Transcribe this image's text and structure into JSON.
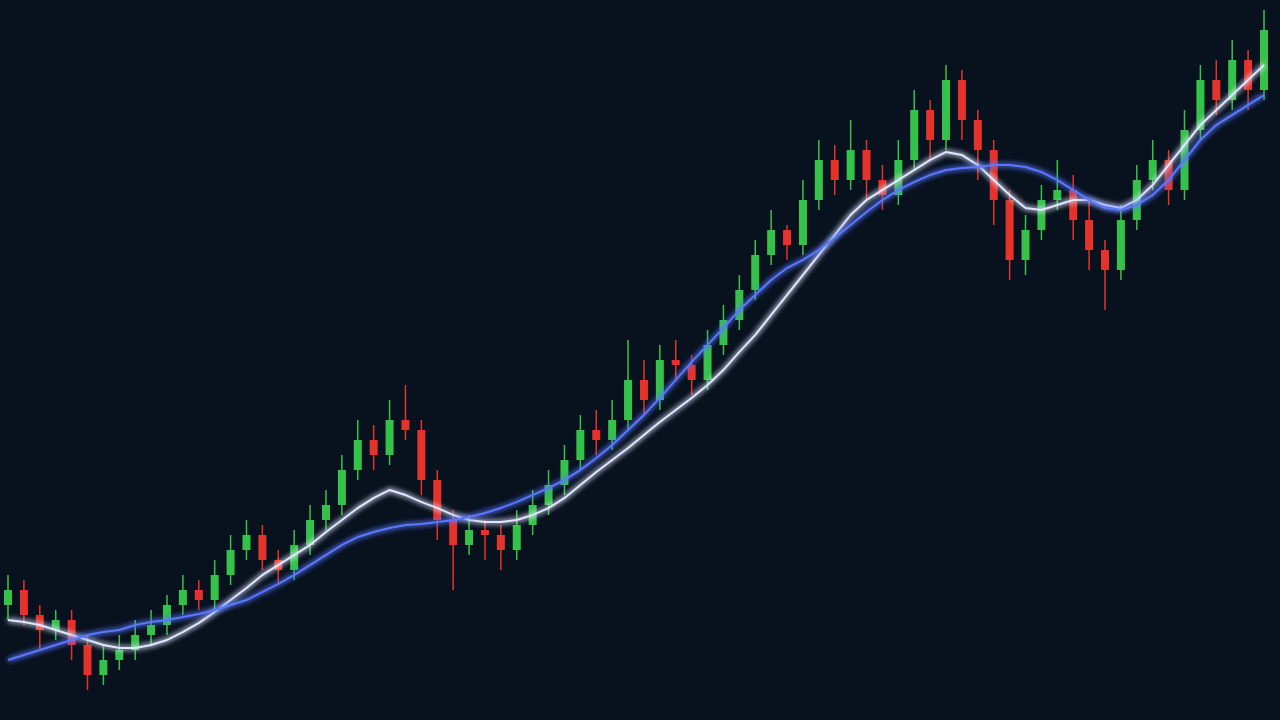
{
  "chart_data": {
    "type": "candlestick",
    "background": "#08111e",
    "up_color": "#35c24a",
    "down_color": "#e5322b",
    "ylim": [
      0,
      720
    ],
    "open": [
      115,
      130,
      105,
      90,
      100,
      75,
      45,
      60,
      70,
      85,
      95,
      115,
      130,
      120,
      145,
      170,
      185,
      160,
      150,
      175,
      200,
      215,
      250,
      280,
      265,
      300,
      290,
      240,
      200,
      175,
      190,
      185,
      170,
      195,
      215,
      235,
      260,
      290,
      280,
      300,
      340,
      320,
      360,
      355,
      340,
      375,
      400,
      430,
      465,
      490,
      475,
      520,
      560,
      540,
      570,
      540,
      525,
      560,
      610,
      580,
      640,
      600,
      570,
      520,
      460,
      490,
      520,
      530,
      500,
      470,
      450,
      500,
      540,
      560,
      530,
      590,
      640,
      620,
      660,
      630
    ],
    "high": [
      145,
      140,
      115,
      110,
      110,
      85,
      75,
      85,
      100,
      110,
      125,
      145,
      140,
      160,
      185,
      200,
      195,
      170,
      190,
      215,
      230,
      265,
      300,
      295,
      320,
      335,
      300,
      250,
      210,
      205,
      200,
      195,
      210,
      230,
      250,
      275,
      305,
      310,
      320,
      380,
      360,
      375,
      380,
      365,
      390,
      415,
      445,
      480,
      510,
      495,
      540,
      580,
      575,
      600,
      580,
      555,
      580,
      630,
      620,
      655,
      650,
      610,
      580,
      530,
      505,
      535,
      560,
      545,
      520,
      480,
      515,
      555,
      580,
      570,
      610,
      655,
      660,
      680,
      670,
      710
    ],
    "low": [
      100,
      95,
      70,
      80,
      60,
      30,
      35,
      50,
      60,
      75,
      85,
      105,
      110,
      110,
      135,
      160,
      150,
      135,
      140,
      165,
      190,
      205,
      240,
      250,
      255,
      280,
      225,
      180,
      130,
      165,
      160,
      150,
      160,
      185,
      205,
      225,
      250,
      265,
      270,
      290,
      305,
      310,
      340,
      325,
      330,
      365,
      390,
      420,
      455,
      460,
      465,
      510,
      525,
      530,
      520,
      510,
      515,
      550,
      560,
      570,
      580,
      540,
      495,
      440,
      445,
      480,
      510,
      480,
      450,
      410,
      440,
      490,
      530,
      515,
      520,
      580,
      605,
      610,
      610,
      620
    ],
    "close": [
      130,
      105,
      90,
      100,
      75,
      45,
      60,
      70,
      85,
      95,
      115,
      130,
      120,
      145,
      170,
      185,
      160,
      150,
      175,
      200,
      215,
      250,
      280,
      265,
      300,
      290,
      240,
      200,
      175,
      190,
      185,
      170,
      195,
      215,
      235,
      260,
      290,
      280,
      300,
      340,
      320,
      360,
      355,
      340,
      375,
      400,
      430,
      465,
      490,
      475,
      520,
      560,
      540,
      570,
      540,
      525,
      560,
      610,
      580,
      640,
      600,
      570,
      520,
      460,
      490,
      520,
      530,
      500,
      470,
      450,
      500,
      540,
      560,
      530,
      590,
      640,
      620,
      660,
      630,
      690
    ],
    "series": [
      {
        "color": "#dfe6ff",
        "values": [
          100,
          98,
          95,
          90,
          85,
          80,
          75,
          72,
          72,
          75,
          80,
          88,
          97,
          108,
          120,
          132,
          145,
          155,
          165,
          175,
          188,
          200,
          212,
          222,
          230,
          225,
          218,
          212,
          205,
          200,
          198,
          198,
          200,
          205,
          212,
          222,
          235,
          248,
          260,
          272,
          285,
          298,
          310,
          322,
          335,
          350,
          368,
          385,
          405,
          425,
          445,
          465,
          485,
          505,
          520,
          530,
          540,
          550,
          560,
          568,
          565,
          555,
          540,
          525,
          512,
          510,
          515,
          520,
          520,
          515,
          512,
          520,
          535,
          555,
          575,
          595,
          610,
          625,
          640,
          655
        ]
      },
      {
        "color": "#5a78ff",
        "values": [
          60,
          65,
          70,
          75,
          80,
          85,
          88,
          90,
          95,
          98,
          100,
          103,
          106,
          110,
          115,
          120,
          128,
          136,
          145,
          155,
          165,
          175,
          183,
          188,
          192,
          195,
          196,
          198,
          200,
          203,
          207,
          212,
          218,
          225,
          232,
          240,
          250,
          262,
          275,
          290,
          305,
          322,
          340,
          358,
          375,
          392,
          410,
          425,
          440,
          452,
          460,
          470,
          482,
          495,
          508,
          520,
          530,
          538,
          545,
          550,
          552,
          553,
          555,
          555,
          553,
          548,
          540,
          530,
          520,
          512,
          510,
          515,
          525,
          540,
          560,
          580,
          595,
          605,
          615,
          625
        ]
      }
    ]
  }
}
